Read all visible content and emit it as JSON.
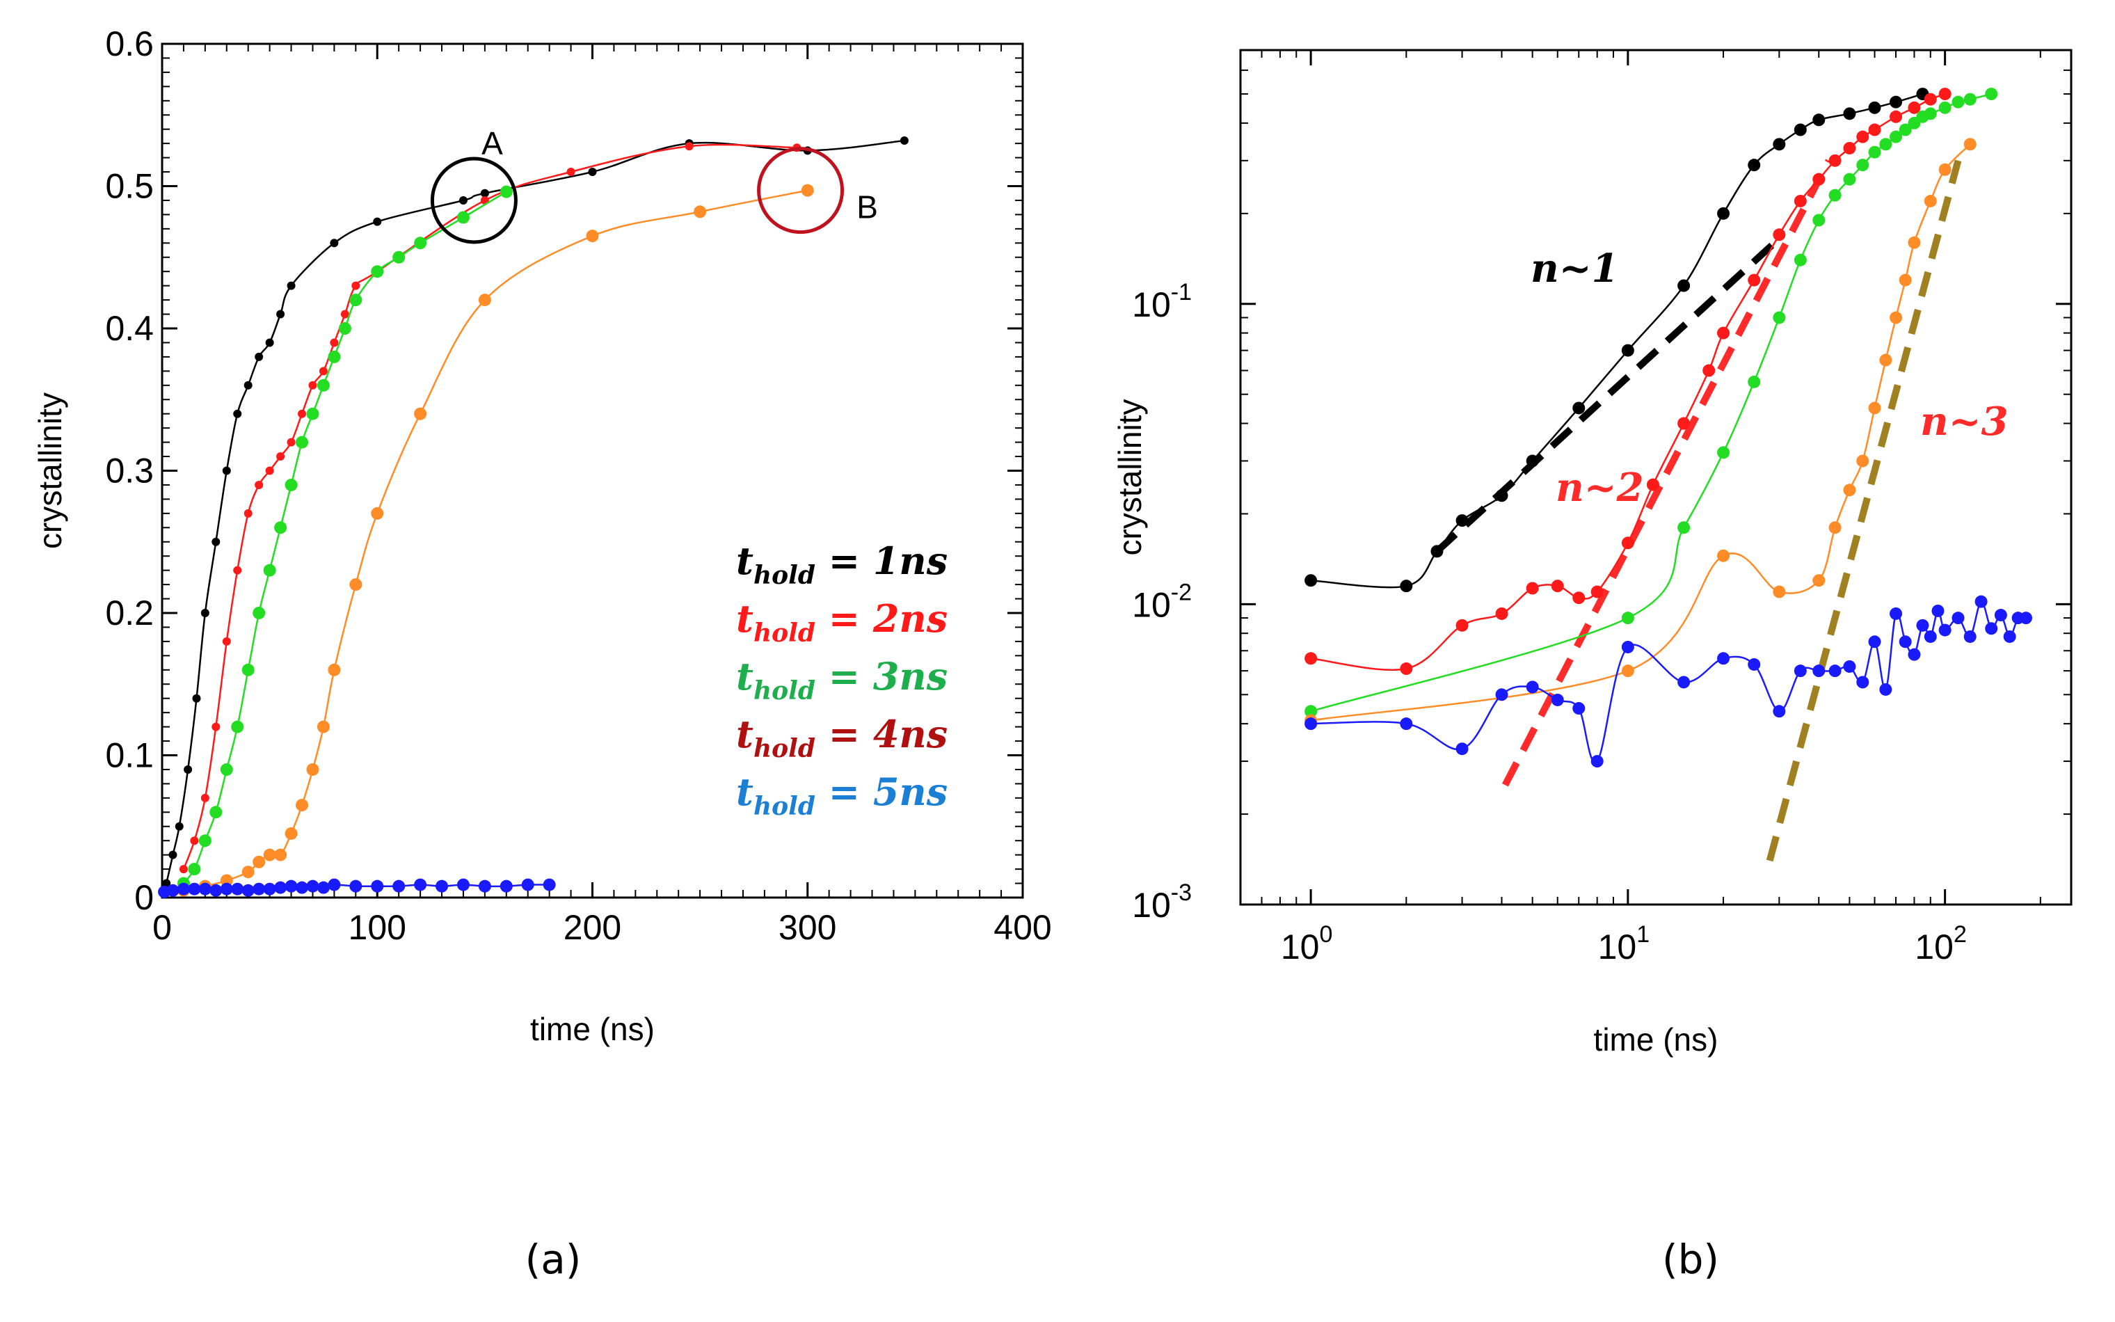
{
  "colors": {
    "t1": "#000000",
    "t2": "#ff1a1a",
    "t3": "#22dd22",
    "t4": "#ff8c26",
    "t5": "#1a1aff",
    "legend_t3": "#1fae4c",
    "legend_t4": "#b01010",
    "legend_t5": "#1b7fd6",
    "circleA": "#000000",
    "circleB": "#c0121e",
    "fit_n1": "#000000",
    "fit_n2": "#ff2a2a",
    "fit_n3": "#a08020"
  },
  "panels": {
    "a_label": "(a)",
    "b_label": "(b)"
  },
  "chart_data": [
    {
      "type": "line",
      "panel": "(a)",
      "title": "",
      "xlabel": "time  (ns)",
      "ylabel": "crystallinity",
      "xlim": [
        0,
        400
      ],
      "ylim": [
        0,
        0.6
      ],
      "xticks": [
        0,
        100,
        200,
        300,
        400
      ],
      "yticks": [
        0,
        0.1,
        0.2,
        0.3,
        0.4,
        0.5,
        0.6
      ],
      "xtick_labels": [
        "0",
        "100",
        "200",
        "300",
        "400"
      ],
      "ytick_labels": [
        "0",
        "0.1",
        "0.2",
        "0.3",
        "0.4",
        "0.5",
        "0.6"
      ],
      "legend": [
        {
          "var": "t",
          "sub": "hold",
          "eq": " = ",
          "val": "1ns",
          "color_key": "t1"
        },
        {
          "var": "t",
          "sub": "hold",
          "eq": " = ",
          "val": "2ns",
          "color_key": "t2"
        },
        {
          "var": "t",
          "sub": "hold",
          "eq": " = ",
          "val": "3ns",
          "color_key": "legend_t3"
        },
        {
          "var": "t",
          "sub": "hold",
          "eq": " = ",
          "val": "4ns",
          "color_key": "legend_t4"
        },
        {
          "var": "t",
          "sub": "hold",
          "eq": " = ",
          "val": "5ns",
          "color_key": "legend_t5"
        }
      ],
      "annotations": [
        {
          "text": "A",
          "x": 145,
          "y": 0.49,
          "color_key": "circleA"
        },
        {
          "text": "B",
          "x": 298,
          "y": 0.497,
          "color_key": "circleB"
        }
      ],
      "series": [
        {
          "name": "t_hold = 1ns",
          "color_key": "t1",
          "x": [
            2,
            5,
            8,
            12,
            16,
            20,
            25,
            30,
            35,
            40,
            45,
            50,
            55,
            60,
            80,
            100,
            140,
            150,
            200,
            245,
            300,
            345
          ],
          "y": [
            0.01,
            0.03,
            0.05,
            0.09,
            0.14,
            0.2,
            0.25,
            0.3,
            0.34,
            0.36,
            0.38,
            0.39,
            0.41,
            0.43,
            0.46,
            0.475,
            0.49,
            0.495,
            0.51,
            0.53,
            0.525,
            0.532
          ]
        },
        {
          "name": "t_hold = 2ns",
          "color_key": "t2",
          "x": [
            10,
            15,
            20,
            25,
            30,
            35,
            40,
            45,
            50,
            55,
            60,
            65,
            70,
            75,
            80,
            85,
            90,
            100,
            150,
            190,
            245,
            295
          ],
          "y": [
            0.02,
            0.04,
            0.07,
            0.12,
            0.18,
            0.23,
            0.27,
            0.29,
            0.3,
            0.31,
            0.32,
            0.34,
            0.36,
            0.37,
            0.39,
            0.41,
            0.43,
            0.44,
            0.49,
            0.51,
            0.528,
            0.527
          ]
        },
        {
          "name": "t_hold = 3ns",
          "color_key": "t3",
          "x": [
            10,
            15,
            20,
            25,
            30,
            35,
            40,
            45,
            50,
            55,
            60,
            65,
            70,
            75,
            80,
            85,
            90,
            100,
            110,
            120,
            140,
            160
          ],
          "y": [
            0.01,
            0.02,
            0.04,
            0.06,
            0.09,
            0.12,
            0.16,
            0.2,
            0.23,
            0.26,
            0.29,
            0.32,
            0.34,
            0.36,
            0.38,
            0.4,
            0.42,
            0.44,
            0.45,
            0.46,
            0.478,
            0.496
          ]
        },
        {
          "name": "t_hold = 4ns",
          "color_key": "t4",
          "x": [
            10,
            20,
            30,
            40,
            45,
            50,
            55,
            60,
            65,
            70,
            75,
            80,
            90,
            100,
            120,
            150,
            200,
            250,
            300
          ],
          "y": [
            0.005,
            0.008,
            0.012,
            0.018,
            0.025,
            0.03,
            0.03,
            0.045,
            0.065,
            0.09,
            0.12,
            0.16,
            0.22,
            0.27,
            0.34,
            0.42,
            0.465,
            0.482,
            0.497
          ]
        },
        {
          "name": "t_hold = 5ns",
          "color_key": "t5",
          "x": [
            1,
            5,
            10,
            15,
            20,
            25,
            30,
            35,
            40,
            45,
            50,
            55,
            60,
            65,
            70,
            75,
            80,
            90,
            100,
            110,
            120,
            130,
            140,
            150,
            160,
            170,
            180
          ],
          "y": [
            0.004,
            0.005,
            0.006,
            0.006,
            0.006,
            0.005,
            0.006,
            0.006,
            0.005,
            0.006,
            0.006,
            0.007,
            0.008,
            0.007,
            0.008,
            0.007,
            0.009,
            0.008,
            0.008,
            0.008,
            0.009,
            0.008,
            0.009,
            0.008,
            0.008,
            0.009,
            0.009
          ]
        }
      ]
    },
    {
      "type": "line",
      "panel": "(b)",
      "scale": "log-log",
      "title": "",
      "xlabel": "time  (ns)",
      "ylabel": "crystallinity",
      "xlim": [
        0.6,
        250
      ],
      "ylim": [
        0.001,
        0.7
      ],
      "xticks": [
        1,
        10,
        100
      ],
      "yticks": [
        0.001,
        0.01,
        0.1
      ],
      "xtick_labels": [
        [
          "10",
          "0"
        ],
        [
          "10",
          "1"
        ],
        [
          "10",
          "2"
        ]
      ],
      "ytick_labels": [
        [
          "10",
          "-3"
        ],
        [
          "10",
          "-2"
        ],
        [
          "10",
          "-1"
        ]
      ],
      "annotations": [
        {
          "text": "n~1",
          "color_key": "fit_n1"
        },
        {
          "text": "n~2",
          "color_key": "fit_n2"
        },
        {
          "text": "n~3",
          "color_key": "fit_n2"
        }
      ],
      "fit_lines": [
        {
          "name": "n~1",
          "color_key": "fit_n1",
          "x": [
            2.5,
            30
          ],
          "y": [
            0.015,
            0.165
          ]
        },
        {
          "name": "n~2",
          "color_key": "fit_n2",
          "x": [
            4.1,
            43
          ],
          "y": [
            0.0025,
            0.3
          ]
        },
        {
          "name": "n~3",
          "color_key": "fit_n3",
          "x": [
            28,
            110
          ],
          "y": [
            0.0014,
            0.3
          ]
        }
      ],
      "series": [
        {
          "name": "t_hold = 1ns",
          "color_key": "t1",
          "x": [
            1,
            2,
            2.5,
            3,
            4,
            5,
            7,
            10,
            15,
            20,
            25,
            30,
            35,
            40,
            50,
            60,
            70,
            85
          ],
          "y": [
            0.012,
            0.0115,
            0.015,
            0.019,
            0.023,
            0.03,
            0.045,
            0.07,
            0.115,
            0.2,
            0.29,
            0.34,
            0.38,
            0.41,
            0.43,
            0.45,
            0.47,
            0.5
          ]
        },
        {
          "name": "t_hold = 2ns",
          "color_key": "t2",
          "x": [
            1,
            2,
            3,
            4,
            5,
            6,
            7,
            8,
            10,
            12,
            15,
            18,
            20,
            25,
            30,
            35,
            40,
            45,
            50,
            55,
            60,
            70,
            80,
            90,
            100
          ],
          "y": [
            0.0066,
            0.0061,
            0.0085,
            0.0093,
            0.0113,
            0.0115,
            0.0105,
            0.011,
            0.016,
            0.025,
            0.04,
            0.06,
            0.08,
            0.12,
            0.17,
            0.22,
            0.26,
            0.3,
            0.33,
            0.36,
            0.38,
            0.42,
            0.45,
            0.48,
            0.5
          ]
        },
        {
          "name": "t_hold = 3ns",
          "color_key": "t3",
          "x": [
            1,
            10,
            15,
            20,
            25,
            30,
            35,
            40,
            45,
            50,
            55,
            60,
            65,
            70,
            75,
            80,
            85,
            90,
            100,
            110,
            120,
            140
          ],
          "y": [
            0.0044,
            0.009,
            0.018,
            0.032,
            0.055,
            0.09,
            0.14,
            0.19,
            0.23,
            0.26,
            0.29,
            0.32,
            0.34,
            0.36,
            0.38,
            0.4,
            0.42,
            0.43,
            0.45,
            0.47,
            0.48,
            0.5
          ]
        },
        {
          "name": "t_hold = 4ns",
          "color_key": "t4",
          "x": [
            1,
            10,
            20,
            30,
            40,
            45,
            50,
            55,
            60,
            65,
            70,
            75,
            80,
            90,
            100,
            120
          ],
          "y": [
            0.0041,
            0.006,
            0.0145,
            0.011,
            0.012,
            0.018,
            0.024,
            0.03,
            0.045,
            0.065,
            0.09,
            0.12,
            0.16,
            0.22,
            0.28,
            0.34
          ]
        },
        {
          "name": "t_hold = 5ns",
          "color_key": "t5",
          "x": [
            1,
            2,
            3,
            4,
            5,
            6,
            7,
            8,
            10,
            15,
            20,
            25,
            30,
            35,
            40,
            45,
            50,
            55,
            60,
            65,
            70,
            75,
            80,
            85,
            90,
            95,
            100,
            110,
            120,
            130,
            140,
            150,
            160,
            170,
            180
          ],
          "y": [
            0.004,
            0.004,
            0.0033,
            0.005,
            0.0053,
            0.0048,
            0.0045,
            0.003,
            0.0072,
            0.0055,
            0.0066,
            0.0063,
            0.0044,
            0.006,
            0.006,
            0.006,
            0.0062,
            0.0055,
            0.0075,
            0.0052,
            0.0093,
            0.0075,
            0.0068,
            0.0085,
            0.0078,
            0.0095,
            0.0082,
            0.009,
            0.0078,
            0.0102,
            0.0083,
            0.0092,
            0.0078,
            0.009,
            0.009
          ]
        }
      ]
    }
  ]
}
